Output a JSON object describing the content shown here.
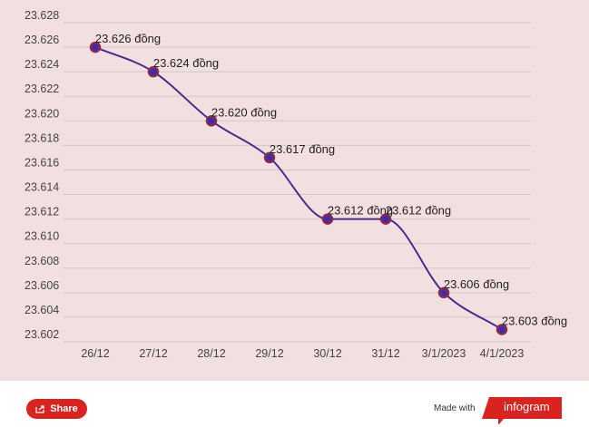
{
  "chart_data": {
    "type": "line",
    "categories": [
      "26/12",
      "27/12",
      "28/12",
      "29/12",
      "30/12",
      "31/12",
      "3/1/2023",
      "4/1/2023"
    ],
    "values": [
      23.626,
      23.624,
      23.62,
      23.617,
      23.612,
      23.612,
      23.606,
      23.603
    ],
    "data_labels": [
      "23.626 đồng",
      "23.624 đồng",
      "23.620 đồng",
      "23.617 đồng",
      "23.612 đồng",
      "23.612 đồng",
      "23.606 đồng",
      "23.603 đồng"
    ],
    "y_ticks": [
      "23.628",
      "23.626",
      "23.624",
      "23.622",
      "23.620",
      "23.618",
      "23.616",
      "23.614",
      "23.612",
      "23.610",
      "23.608",
      "23.606",
      "23.604",
      "23.602"
    ],
    "ylim": [
      23.602,
      23.628
    ],
    "grid": true,
    "line_color": "#4b2a8f",
    "marker_fill": "#3b2db0",
    "marker_stroke": "#8b2a4a",
    "background": "#f2e0e0"
  },
  "footer": {
    "share_label": "Share",
    "made_with": "Made with",
    "brand": "infogram",
    "brand_color": "#d8231f"
  }
}
